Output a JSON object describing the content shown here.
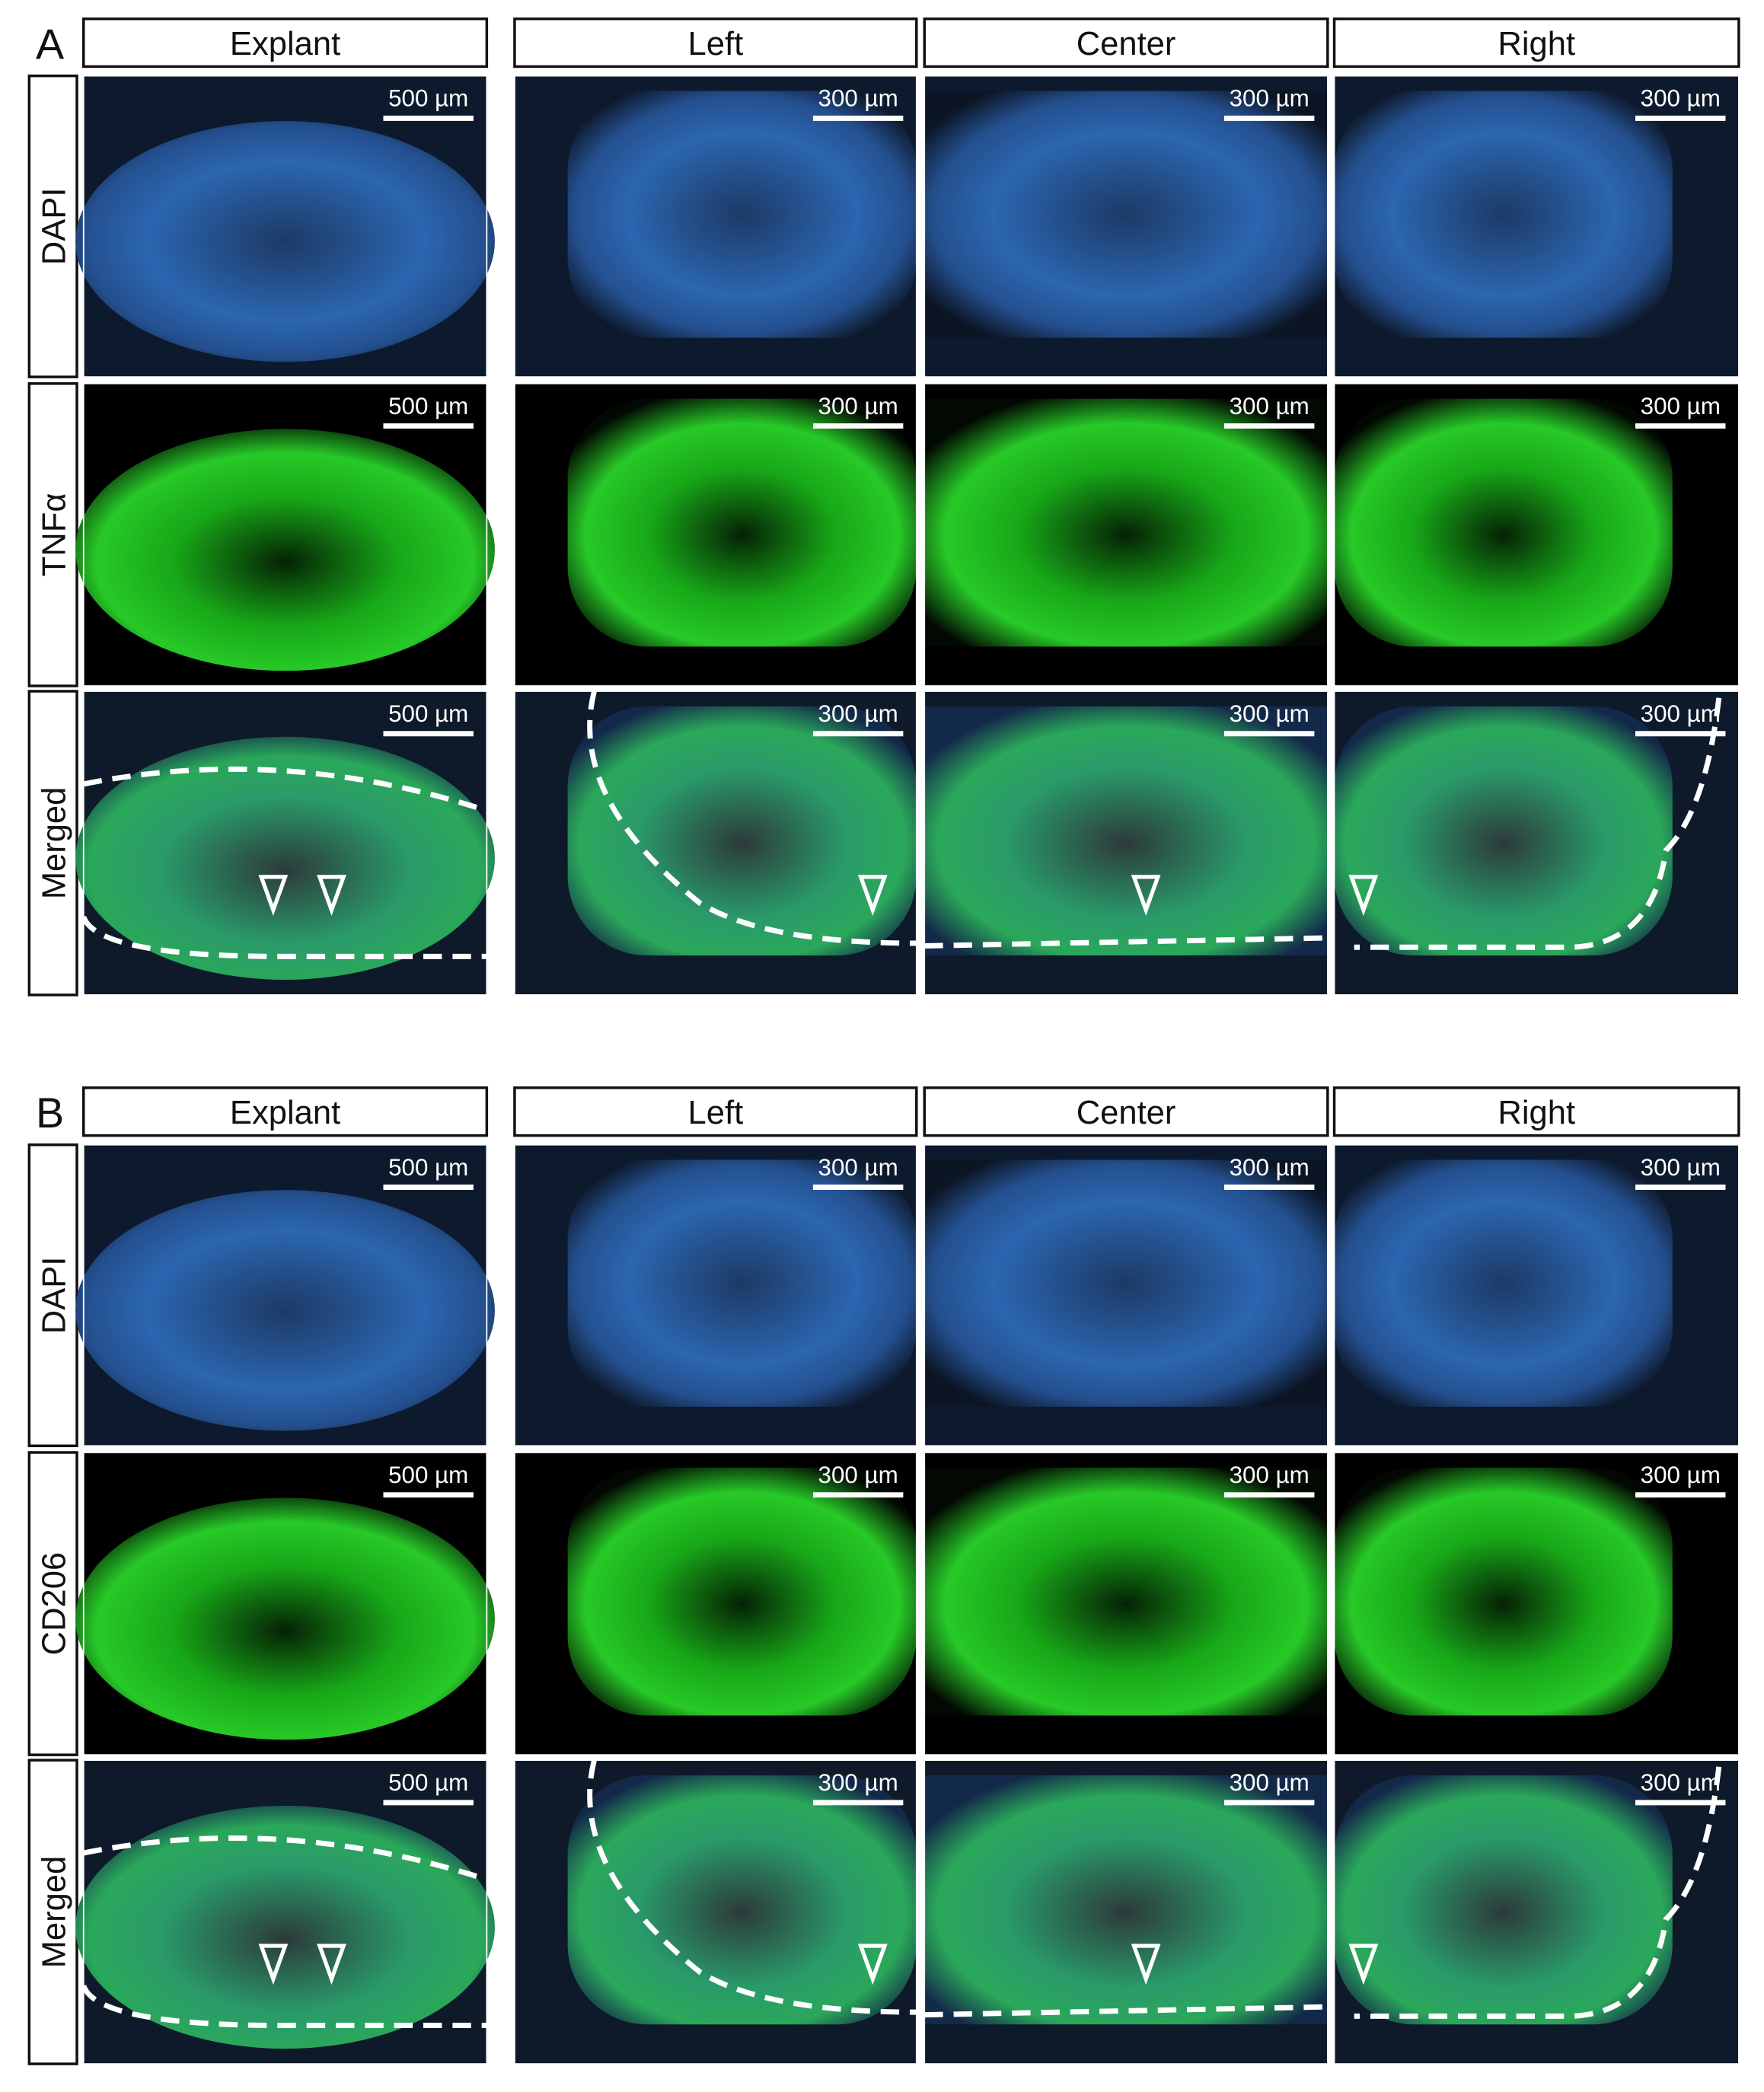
{
  "figures": [
    {
      "label": "A",
      "columns": [
        "Explant",
        "Left",
        "Center",
        "Right"
      ],
      "rows": [
        {
          "label": "DAPI",
          "color": "#2446d0",
          "scale_bars": [
            "500 µm",
            "300 µm",
            "300 µm",
            "300 µm"
          ]
        },
        {
          "label": "TNFα",
          "color": "#1e9a1e",
          "scale_bars": [
            "500 µm",
            "300 µm",
            "300 µm",
            "300 µm"
          ]
        },
        {
          "label": "Merged",
          "color": "#111111",
          "scale_bars": [
            "500 µm",
            "300 µm",
            "300 µm",
            "300 µm"
          ]
        }
      ]
    },
    {
      "label": "B",
      "columns": [
        "Explant",
        "Left",
        "Center",
        "Right"
      ],
      "rows": [
        {
          "label": "DAPI",
          "color": "#2446d0",
          "scale_bars": [
            "500 µm",
            "300 µm",
            "300 µm",
            "300 µm"
          ]
        },
        {
          "label": "CD206",
          "color": "#1e9a1e",
          "scale_bars": [
            "500 µm",
            "300 µm",
            "300 µm",
            "300 µm"
          ]
        },
        {
          "label": "Merged",
          "color": "#111111",
          "scale_bars": [
            "500 µm",
            "300 µm",
            "300 µm",
            "300 µm"
          ]
        }
      ]
    }
  ]
}
